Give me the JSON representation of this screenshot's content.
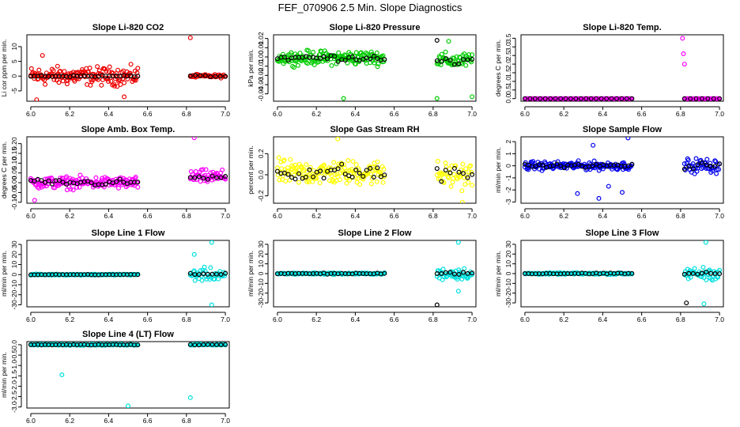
{
  "figure_title": "FEF_070906  2.5 Min. Slope Diagnostics",
  "point_style": "open-circle",
  "chart_data": [
    {
      "type": "scatter",
      "title": "Slope Li-820 CO2",
      "ylabel": "Li cor ppm per min.",
      "xlim": [
        5.98,
        7.02
      ],
      "ylim": [
        -8.5,
        14
      ],
      "xticks": [
        6.0,
        6.2,
        6.4,
        6.6,
        6.8,
        7.0
      ],
      "xticklabels": [
        "6.0",
        "6.2",
        "6.4",
        "6.6",
        "6.8",
        "7.0"
      ],
      "yticks": [
        -5,
        0,
        5,
        10
      ],
      "yticklabels": [
        "-5",
        "0",
        "5",
        "10"
      ],
      "colored_color": "#ee0000",
      "mean_color": "#000000",
      "segments": [
        {
          "x_start": 6.0,
          "x_end": 6.55,
          "colored_center": 0,
          "colored_spread": 4.5,
          "mean_center": 0,
          "mean_spread": 0.3,
          "density": 1
        },
        {
          "x_start": 6.82,
          "x_end": 7.0,
          "colored_center": 0,
          "colored_spread": 0.8,
          "mean_center": 0,
          "mean_spread": 0.3,
          "density": 0.8
        }
      ],
      "outliers": [
        {
          "x": 6.82,
          "y": 13,
          "s": "colored"
        },
        {
          "x": 6.06,
          "y": 7,
          "s": "colored"
        },
        {
          "x": 6.03,
          "y": -8,
          "s": "colored"
        },
        {
          "x": 6.48,
          "y": -7,
          "s": "colored"
        }
      ]
    },
    {
      "type": "scatter",
      "title": "Slope Li-820 Pressure",
      "ylabel": "kPa per min.",
      "xlim": [
        5.98,
        7.02
      ],
      "ylim": [
        -0.048,
        0.024
      ],
      "xticks": [
        6.0,
        6.2,
        6.4,
        6.6,
        6.8,
        7.0
      ],
      "xticklabels": [
        "6.0",
        "6.2",
        "6.4",
        "6.6",
        "6.8",
        "7.0"
      ],
      "yticks": [
        -0.04,
        -0.03,
        -0.02,
        -0.01,
        0.0,
        0.01,
        0.02
      ],
      "yticklabels": [
        "-0.04",
        "-0.03",
        "-0.02",
        "-0.01",
        "0.00",
        "0.01",
        "0.02"
      ],
      "colored_color": "#00cc00",
      "mean_color": "#000000",
      "segments": [
        {
          "x_start": 6.0,
          "x_end": 6.55,
          "colored_center": -0.001,
          "colored_spread": 0.011,
          "mean_center": -0.001,
          "mean_spread": 0.005,
          "density": 1
        },
        {
          "x_start": 6.82,
          "x_end": 7.0,
          "colored_center": -0.004,
          "colored_spread": 0.012,
          "mean_center": -0.004,
          "mean_spread": 0.007,
          "density": 0.9
        }
      ],
      "outliers": [
        {
          "x": 6.82,
          "y": 0.018,
          "s": "mean"
        },
        {
          "x": 6.34,
          "y": -0.045,
          "s": "colored"
        },
        {
          "x": 6.82,
          "y": -0.045,
          "s": "colored"
        },
        {
          "x": 7.0,
          "y": -0.043,
          "s": "colored"
        },
        {
          "x": 6.88,
          "y": 0.017,
          "s": "colored"
        }
      ]
    },
    {
      "type": "scatter",
      "title": "Slope Li-820 Temp.",
      "ylabel": "degrees C per min.",
      "xlim": [
        5.98,
        7.02
      ],
      "ylim": [
        -0.15,
        3.7
      ],
      "xticks": [
        6.0,
        6.2,
        6.4,
        6.6,
        6.8,
        7.0
      ],
      "xticklabels": [
        "6.0",
        "6.2",
        "6.4",
        "6.6",
        "6.8",
        "7.0"
      ],
      "yticks": [
        0,
        0.5,
        1.0,
        1.5,
        2.0,
        2.5,
        3.0,
        3.5
      ],
      "yticklabels": [
        "0.0",
        "0.5",
        "1.0",
        "1.5",
        "2.0",
        "2.5",
        "3.0",
        "3.5"
      ],
      "colored_color": "#ff00ff",
      "mean_color": "#000000",
      "segments": [
        {
          "x_start": 6.0,
          "x_end": 6.55,
          "colored_center": 0,
          "colored_spread": 0,
          "mean_center": 0,
          "mean_spread": 0,
          "density": 0.7
        },
        {
          "x_start": 6.82,
          "x_end": 7.0,
          "colored_center": 0,
          "colored_spread": 0,
          "mean_center": 0,
          "mean_spread": 0,
          "density": 0.7
        }
      ],
      "outliers": [
        {
          "x": 6.81,
          "y": 3.5,
          "s": "colored"
        },
        {
          "x": 6.815,
          "y": 2.6,
          "s": "colored"
        },
        {
          "x": 6.82,
          "y": 2.0,
          "s": "colored"
        }
      ]
    },
    {
      "type": "scatter",
      "title": "Slope Amb. Box Temp.",
      "ylabel": "degrees C per min.",
      "xlim": [
        5.98,
        7.02
      ],
      "ylim": [
        -0.105,
        0.235
      ],
      "xticks": [
        6.0,
        6.2,
        6.4,
        6.6,
        6.8,
        7.0
      ],
      "xticklabels": [
        "6.0",
        "6.2",
        "6.4",
        "6.6",
        "6.8",
        "7.0"
      ],
      "yticks": [
        -0.1,
        -0.05,
        0,
        0.05,
        0.1,
        0.15,
        0.2
      ],
      "yticklabels": [
        "-0.10",
        "-0.05",
        "0.00",
        "0.05",
        "0.10",
        "0.15",
        "0.20"
      ],
      "colored_color": "#ff00ff",
      "mean_color": "#000000",
      "segments": [
        {
          "x_start": 6.0,
          "x_end": 6.55,
          "colored_center": 0.0,
          "colored_spread": 0.045,
          "mean_center": 0.0,
          "mean_spread": 0.025,
          "density": 1
        },
        {
          "x_start": 6.82,
          "x_end": 7.0,
          "colored_center": 0.03,
          "colored_spread": 0.05,
          "mean_center": 0.03,
          "mean_spread": 0.03,
          "density": 0.9
        }
      ],
      "outliers": [
        {
          "x": 6.84,
          "y": 0.23,
          "s": "colored"
        },
        {
          "x": 6.02,
          "y": -0.09,
          "s": "colored"
        }
      ]
    },
    {
      "type": "scatter",
      "title": "Slope Gas Stream RH",
      "ylabel": "percent per min.",
      "xlim": [
        5.98,
        7.02
      ],
      "ylim": [
        -0.27,
        0.36
      ],
      "xticks": [
        6.0,
        6.2,
        6.4,
        6.6,
        6.8,
        7.0
      ],
      "xticklabels": [
        "6.0",
        "6.2",
        "6.4",
        "6.6",
        "6.8",
        "7.0"
      ],
      "yticks": [
        -0.2,
        0.0,
        0.2
      ],
      "yticklabels": [
        "-0.2",
        "0.0",
        "0.2"
      ],
      "colored_color": "#ffff00",
      "mean_color": "#000000",
      "segments": [
        {
          "x_start": 6.0,
          "x_end": 6.55,
          "colored_center": 0.02,
          "colored_spread": 0.17,
          "mean_center": 0.02,
          "mean_spread": 0.12,
          "density": 1
        },
        {
          "x_start": 6.82,
          "x_end": 7.0,
          "colored_center": 0.0,
          "colored_spread": 0.18,
          "mean_center": 0.0,
          "mean_spread": 0.13,
          "density": 0.9
        }
      ],
      "outliers": [
        {
          "x": 6.31,
          "y": 0.34,
          "s": "colored"
        },
        {
          "x": 6.95,
          "y": -0.26,
          "s": "colored"
        }
      ]
    },
    {
      "type": "scatter",
      "title": "Slope Sample Flow",
      "ylabel": "ml/min per min.",
      "xlim": [
        5.98,
        7.02
      ],
      "ylim": [
        -3.1,
        2.4
      ],
      "xticks": [
        6.0,
        6.2,
        6.4,
        6.6,
        6.8,
        7.0
      ],
      "xticklabels": [
        "6.0",
        "6.2",
        "6.4",
        "6.6",
        "6.8",
        "7.0"
      ],
      "yticks": [
        -3,
        -2,
        -1,
        0,
        1,
        2
      ],
      "yticklabels": [
        "-3",
        "-2",
        "-1",
        "0",
        "1",
        "2"
      ],
      "colored_color": "#0000ee",
      "mean_color": "#000000",
      "segments": [
        {
          "x_start": 6.0,
          "x_end": 6.55,
          "colored_center": 0.0,
          "colored_spread": 0.5,
          "mean_center": 0.0,
          "mean_spread": 0.2,
          "density": 1
        },
        {
          "x_start": 6.82,
          "x_end": 7.0,
          "colored_center": 0.0,
          "colored_spread": 0.9,
          "mean_center": 0.0,
          "mean_spread": 0.5,
          "density": 0.9
        }
      ],
      "outliers": [
        {
          "x": 6.53,
          "y": 2.3,
          "s": "colored"
        },
        {
          "x": 6.38,
          "y": -2.7,
          "s": "colored"
        },
        {
          "x": 6.5,
          "y": -2.2,
          "s": "colored"
        },
        {
          "x": 6.43,
          "y": -1.7,
          "s": "colored"
        },
        {
          "x": 6.27,
          "y": -2.3,
          "s": "colored"
        },
        {
          "x": 6.35,
          "y": 1.7,
          "s": "colored"
        }
      ]
    },
    {
      "type": "scatter",
      "title": "Slope Line 1 Flow",
      "ylabel": "ml/min per min.",
      "xlim": [
        5.98,
        7.02
      ],
      "ylim": [
        -32,
        34
      ],
      "xticks": [
        6.0,
        6.2,
        6.4,
        6.6,
        6.8,
        7.0
      ],
      "xticklabels": [
        "6.0",
        "6.2",
        "6.4",
        "6.6",
        "6.8",
        "7.0"
      ],
      "yticks": [
        -30,
        -20,
        -10,
        0,
        10,
        20,
        30
      ],
      "yticklabels": [
        "-30",
        "-20",
        "-10",
        "0",
        "10",
        "20",
        "30"
      ],
      "colored_color": "#00e0e0",
      "mean_color": "#000000",
      "segments": [
        {
          "x_start": 6.0,
          "x_end": 6.55,
          "colored_center": 0,
          "colored_spread": 0.8,
          "mean_center": 0,
          "mean_spread": 0.4,
          "density": 1
        },
        {
          "x_start": 6.82,
          "x_end": 7.0,
          "colored_center": 0,
          "colored_spread": 9,
          "mean_center": 0,
          "mean_spread": 2,
          "density": 0.9
        }
      ],
      "outliers": [
        {
          "x": 6.93,
          "y": 32,
          "s": "colored"
        },
        {
          "x": 6.93,
          "y": -30,
          "s": "colored"
        },
        {
          "x": 6.84,
          "y": 20,
          "s": "colored"
        }
      ]
    },
    {
      "type": "scatter",
      "title": "Slope Line 2 Flow",
      "ylabel": "ml/min per min.",
      "xlim": [
        5.98,
        7.02
      ],
      "ylim": [
        -34,
        34
      ],
      "xticks": [
        6.0,
        6.2,
        6.4,
        6.6,
        6.8,
        7.0
      ],
      "xticklabels": [
        "6.0",
        "6.2",
        "6.4",
        "6.6",
        "6.8",
        "7.0"
      ],
      "yticks": [
        -30,
        -20,
        -10,
        0,
        10,
        20,
        30
      ],
      "yticklabels": [
        "-30",
        "-20",
        "-10",
        "0",
        "10",
        "20",
        "30"
      ],
      "colored_color": "#00e0e0",
      "mean_color": "#000000",
      "segments": [
        {
          "x_start": 6.0,
          "x_end": 6.55,
          "colored_center": 0,
          "colored_spread": 1.2,
          "mean_center": 0,
          "mean_spread": 0.8,
          "density": 1
        },
        {
          "x_start": 6.82,
          "x_end": 7.0,
          "colored_center": 0,
          "colored_spread": 9,
          "mean_center": 0,
          "mean_spread": 2.5,
          "density": 0.9
        }
      ],
      "outliers": [
        {
          "x": 6.93,
          "y": 32,
          "s": "colored"
        },
        {
          "x": 6.82,
          "y": -32,
          "s": "mean"
        },
        {
          "x": 6.93,
          "y": -18,
          "s": "colored"
        }
      ]
    },
    {
      "type": "scatter",
      "title": "Slope Line 3 Flow",
      "ylabel": "ml/min per min.",
      "xlim": [
        5.98,
        7.02
      ],
      "ylim": [
        -34,
        34
      ],
      "xticks": [
        6.0,
        6.2,
        6.4,
        6.6,
        6.8,
        7.0
      ],
      "xticklabels": [
        "6.0",
        "6.2",
        "6.4",
        "6.6",
        "6.8",
        "7.0"
      ],
      "yticks": [
        -30,
        -20,
        -10,
        0,
        10,
        20,
        30
      ],
      "yticklabels": [
        "-30",
        "-20",
        "-10",
        "0",
        "10",
        "20",
        "30"
      ],
      "colored_color": "#00e0e0",
      "mean_color": "#000000",
      "segments": [
        {
          "x_start": 6.0,
          "x_end": 6.55,
          "colored_center": 0,
          "colored_spread": 1.2,
          "mean_center": 0,
          "mean_spread": 0.8,
          "density": 1
        },
        {
          "x_start": 6.82,
          "x_end": 7.0,
          "colored_center": 0,
          "colored_spread": 9,
          "mean_center": 0,
          "mean_spread": 2.5,
          "density": 0.9
        }
      ],
      "outliers": [
        {
          "x": 6.93,
          "y": 32,
          "s": "colored"
        },
        {
          "x": 6.83,
          "y": -30,
          "s": "mean"
        },
        {
          "x": 6.92,
          "y": -31,
          "s": "colored"
        }
      ]
    },
    {
      "type": "scatter",
      "title": "Slope Line 4 (LT) Flow",
      "ylabel": "ml/min per min.",
      "xlim": [
        5.98,
        7.02
      ],
      "ylim": [
        -3.05,
        0.15
      ],
      "xticks": [
        6.0,
        6.2,
        6.4,
        6.6,
        6.8,
        7.0
      ],
      "xticklabels": [
        "6.0",
        "6.2",
        "6.4",
        "6.6",
        "6.8",
        "7.0"
      ],
      "yticks": [
        -3.0,
        -2.5,
        -2.0,
        -1.5,
        -1.0,
        -0.5,
        0.0
      ],
      "yticklabels": [
        "-3.0",
        "-2.5",
        "-2.0",
        "-1.5",
        "-1.0",
        "-0.5",
        "0.0"
      ],
      "colored_color": "#00e0e0",
      "mean_color": "#000000",
      "segments": [
        {
          "x_start": 6.0,
          "x_end": 6.55,
          "colored_center": 0,
          "colored_spread": 0.04,
          "mean_center": 0,
          "mean_spread": 0.02,
          "density": 1
        },
        {
          "x_start": 6.82,
          "x_end": 7.0,
          "colored_center": 0,
          "colored_spread": 0.04,
          "mean_center": 0,
          "mean_spread": 0.02,
          "density": 0.9
        }
      ],
      "outliers": [
        {
          "x": 6.16,
          "y": -1.45,
          "s": "colored"
        },
        {
          "x": 6.5,
          "y": -2.95,
          "s": "colored"
        },
        {
          "x": 6.82,
          "y": -2.55,
          "s": "colored"
        }
      ]
    }
  ]
}
